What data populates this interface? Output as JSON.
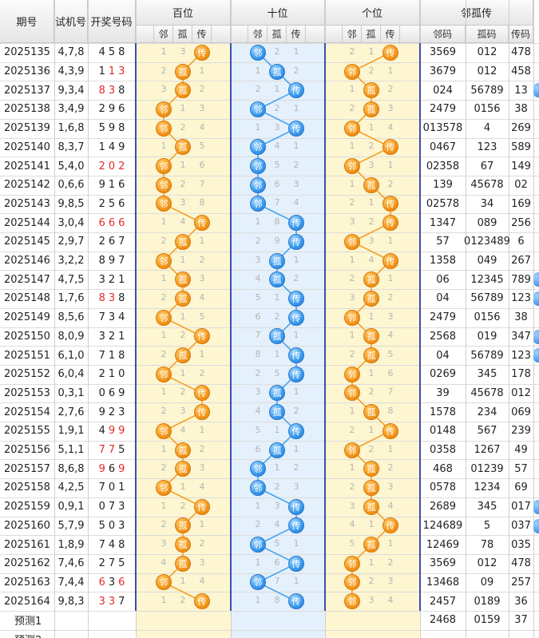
{
  "header": {
    "period": "期号",
    "test_number": "试机号",
    "draw_number": "开奖号码",
    "groups": [
      "百位",
      "十位",
      "个位",
      "邻孤传"
    ],
    "sub_pos": [
      "邻",
      "孤",
      "传"
    ],
    "sub_sum": [
      "邻码",
      "孤码",
      "传码"
    ]
  },
  "rows": [
    {
      "p": "2025135",
      "t": "4,7,8",
      "d": [
        "4",
        "5",
        "8"
      ],
      "r": [
        false,
        false,
        false
      ],
      "h": [
        1,
        3,
        "传"
      ],
      "s": [
        "邻",
        2,
        1
      ],
      "g": [
        2,
        1,
        "传"
      ],
      "n": [
        "3569",
        "012",
        "478"
      ]
    },
    {
      "p": "2025136",
      "t": "4,3,9",
      "d": [
        "1",
        "1",
        "3"
      ],
      "r": [
        false,
        true,
        true
      ],
      "h": [
        2,
        "孤",
        1
      ],
      "s": [
        1,
        "孤",
        2
      ],
      "g": [
        "邻",
        2,
        1
      ],
      "n": [
        "3679",
        "012",
        "458"
      ]
    },
    {
      "p": "2025137",
      "t": "9,3,4",
      "d": [
        "8",
        "3",
        "8"
      ],
      "r": [
        true,
        true,
        false
      ],
      "h": [
        3,
        "孤",
        2
      ],
      "s": [
        2,
        1,
        "传"
      ],
      "g": [
        1,
        "孤",
        2
      ],
      "n": [
        "024",
        "56789",
        "13"
      ]
    },
    {
      "p": "2025138",
      "t": "3,4,9",
      "d": [
        "2",
        "9",
        "6"
      ],
      "r": [
        false,
        false,
        false
      ],
      "h": [
        "邻",
        1,
        3
      ],
      "s": [
        "邻",
        2,
        1
      ],
      "g": [
        2,
        "孤",
        3
      ],
      "n": [
        "2479",
        "0156",
        "38"
      ]
    },
    {
      "p": "2025139",
      "t": "1,6,8",
      "d": [
        "5",
        "9",
        "8"
      ],
      "r": [
        false,
        false,
        false
      ],
      "h": [
        "邻",
        2,
        4
      ],
      "s": [
        1,
        3,
        "传"
      ],
      "g": [
        "邻",
        1,
        4
      ],
      "n": [
        "013578",
        "4",
        "269"
      ]
    },
    {
      "p": "2025140",
      "t": "8,3,7",
      "d": [
        "1",
        "4",
        "9"
      ],
      "r": [
        false,
        false,
        false
      ],
      "h": [
        1,
        "孤",
        5
      ],
      "s": [
        "邻",
        4,
        1
      ],
      "g": [
        1,
        2,
        "传"
      ],
      "n": [
        "0467",
        "123",
        "589"
      ]
    },
    {
      "p": "2025141",
      "t": "5,4,0",
      "d": [
        "2",
        "0",
        "2"
      ],
      "r": [
        true,
        true,
        true
      ],
      "h": [
        "邻",
        1,
        6
      ],
      "s": [
        "邻",
        5,
        2
      ],
      "g": [
        "邻",
        3,
        1
      ],
      "n": [
        "02358",
        "67",
        "149"
      ]
    },
    {
      "p": "2025142",
      "t": "0,6,6",
      "d": [
        "9",
        "1",
        "6"
      ],
      "r": [
        false,
        false,
        false
      ],
      "h": [
        "邻",
        2,
        7
      ],
      "s": [
        "邻",
        6,
        3
      ],
      "g": [
        1,
        "孤",
        2
      ],
      "n": [
        "139",
        "45678",
        "02"
      ]
    },
    {
      "p": "2025143",
      "t": "9,8,5",
      "d": [
        "2",
        "5",
        "6"
      ],
      "r": [
        false,
        false,
        false
      ],
      "h": [
        "邻",
        3,
        8
      ],
      "s": [
        "邻",
        7,
        4
      ],
      "g": [
        2,
        1,
        "传"
      ],
      "n": [
        "02578",
        "34",
        "169"
      ]
    },
    {
      "p": "2025144",
      "t": "3,0,4",
      "d": [
        "6",
        "6",
        "6"
      ],
      "r": [
        true,
        true,
        true
      ],
      "h": [
        1,
        4,
        "传"
      ],
      "s": [
        1,
        8,
        "传"
      ],
      "g": [
        3,
        2,
        "传"
      ],
      "n": [
        "1347",
        "089",
        "256"
      ]
    },
    {
      "p": "2025145",
      "t": "2,9,7",
      "d": [
        "2",
        "6",
        "7"
      ],
      "r": [
        false,
        false,
        false
      ],
      "h": [
        2,
        "孤",
        1
      ],
      "s": [
        2,
        9,
        "传"
      ],
      "g": [
        "邻",
        3,
        1
      ],
      "n": [
        "57",
        "0123489",
        "6"
      ]
    },
    {
      "p": "2025146",
      "t": "3,2,2",
      "d": [
        "8",
        "9",
        "7"
      ],
      "r": [
        false,
        false,
        false
      ],
      "h": [
        "邻",
        1,
        2
      ],
      "s": [
        3,
        "孤",
        1
      ],
      "g": [
        1,
        4,
        "传"
      ],
      "n": [
        "1358",
        "049",
        "267"
      ]
    },
    {
      "p": "2025147",
      "t": "4,7,5",
      "d": [
        "3",
        "2",
        "1"
      ],
      "r": [
        false,
        false,
        false
      ],
      "h": [
        1,
        "孤",
        3
      ],
      "s": [
        4,
        "孤",
        2
      ],
      "g": [
        2,
        "孤",
        1
      ],
      "n": [
        "06",
        "12345",
        "789"
      ]
    },
    {
      "p": "2025148",
      "t": "1,7,6",
      "d": [
        "8",
        "3",
        "8"
      ],
      "r": [
        true,
        true,
        false
      ],
      "h": [
        2,
        "孤",
        4
      ],
      "s": [
        5,
        1,
        "传"
      ],
      "g": [
        3,
        "孤",
        2
      ],
      "n": [
        "04",
        "56789",
        "123"
      ]
    },
    {
      "p": "2025149",
      "t": "8,5,6",
      "d": [
        "7",
        "3",
        "4"
      ],
      "r": [
        false,
        false,
        false
      ],
      "h": [
        "邻",
        1,
        5
      ],
      "s": [
        6,
        2,
        "传"
      ],
      "g": [
        "邻",
        1,
        3
      ],
      "n": [
        "2479",
        "0156",
        "38"
      ]
    },
    {
      "p": "2025150",
      "t": "8,0,9",
      "d": [
        "3",
        "2",
        "1"
      ],
      "r": [
        false,
        false,
        false
      ],
      "h": [
        1,
        2,
        "传"
      ],
      "s": [
        7,
        "孤",
        1
      ],
      "g": [
        1,
        "孤",
        4
      ],
      "n": [
        "2568",
        "019",
        "347"
      ]
    },
    {
      "p": "2025151",
      "t": "6,1,0",
      "d": [
        "7",
        "1",
        "8"
      ],
      "r": [
        false,
        false,
        false
      ],
      "h": [
        2,
        "孤",
        1
      ],
      "s": [
        8,
        1,
        "传"
      ],
      "g": [
        2,
        "孤",
        5
      ],
      "n": [
        "04",
        "56789",
        "123"
      ]
    },
    {
      "p": "2025152",
      "t": "6,0,4",
      "d": [
        "2",
        "1",
        "0"
      ],
      "r": [
        false,
        false,
        false
      ],
      "h": [
        "邻",
        1,
        2
      ],
      "s": [
        2,
        5,
        "传"
      ],
      "g": [
        "邻",
        1,
        6
      ],
      "n": [
        "0269",
        "345",
        "178"
      ]
    },
    {
      "p": "2025153",
      "t": "0,3,1",
      "d": [
        "0",
        "6",
        "9"
      ],
      "r": [
        false,
        false,
        false
      ],
      "h": [
        1,
        2,
        "传"
      ],
      "s": [
        3,
        "孤",
        1
      ],
      "g": [
        "邻",
        2,
        7
      ],
      "n": [
        "39",
        "45678",
        "012"
      ]
    },
    {
      "p": "2025154",
      "t": "2,7,6",
      "d": [
        "9",
        "2",
        "3"
      ],
      "r": [
        false,
        false,
        false
      ],
      "h": [
        2,
        3,
        "传"
      ],
      "s": [
        4,
        "孤",
        2
      ],
      "g": [
        1,
        "孤",
        8
      ],
      "n": [
        "1578",
        "234",
        "069"
      ]
    },
    {
      "p": "2025155",
      "t": "1,9,1",
      "d": [
        "4",
        "9",
        "9"
      ],
      "r": [
        false,
        true,
        true
      ],
      "h": [
        "邻",
        4,
        1
      ],
      "s": [
        5,
        1,
        "传"
      ],
      "g": [
        2,
        1,
        "传"
      ],
      "n": [
        "0148",
        "567",
        "239"
      ]
    },
    {
      "p": "2025156",
      "t": "5,1,1",
      "d": [
        "7",
        "7",
        "5"
      ],
      "r": [
        true,
        true,
        false
      ],
      "h": [
        1,
        "孤",
        2
      ],
      "s": [
        6,
        "孤",
        1
      ],
      "g": [
        "邻",
        2,
        1
      ],
      "n": [
        "0358",
        "1267",
        "49"
      ]
    },
    {
      "p": "2025157",
      "t": "8,6,8",
      "d": [
        "9",
        "6",
        "9"
      ],
      "r": [
        true,
        false,
        true
      ],
      "h": [
        2,
        "孤",
        3
      ],
      "s": [
        "邻",
        1,
        2
      ],
      "g": [
        1,
        "孤",
        2
      ],
      "n": [
        "468",
        "01239",
        "57"
      ]
    },
    {
      "p": "2025158",
      "t": "4,2,5",
      "d": [
        "7",
        "0",
        "1"
      ],
      "r": [
        false,
        false,
        false
      ],
      "h": [
        "邻",
        1,
        4
      ],
      "s": [
        "邻",
        2,
        3
      ],
      "g": [
        2,
        "孤",
        3
      ],
      "n": [
        "0578",
        "1234",
        "69"
      ]
    },
    {
      "p": "2025159",
      "t": "0,9,1",
      "d": [
        "0",
        "7",
        "3"
      ],
      "r": [
        false,
        false,
        false
      ],
      "h": [
        1,
        2,
        "传"
      ],
      "s": [
        1,
        3,
        "传"
      ],
      "g": [
        3,
        "孤",
        4
      ],
      "n": [
        "2689",
        "345",
        "017"
      ]
    },
    {
      "p": "2025160",
      "t": "5,7,9",
      "d": [
        "5",
        "0",
        "3"
      ],
      "r": [
        false,
        false,
        false
      ],
      "h": [
        2,
        "孤",
        1
      ],
      "s": [
        2,
        4,
        "传"
      ],
      "g": [
        4,
        1,
        "传"
      ],
      "n": [
        "124689",
        "5",
        "037"
      ]
    },
    {
      "p": "2025161",
      "t": "1,8,9",
      "d": [
        "7",
        "4",
        "8"
      ],
      "r": [
        false,
        false,
        false
      ],
      "h": [
        3,
        "孤",
        2
      ],
      "s": [
        "邻",
        5,
        1
      ],
      "g": [
        5,
        "孤",
        1
      ],
      "n": [
        "12469",
        "78",
        "035"
      ]
    },
    {
      "p": "2025162",
      "t": "7,4,6",
      "d": [
        "2",
        "7",
        "5"
      ],
      "r": [
        false,
        false,
        false
      ],
      "h": [
        4,
        "孤",
        3
      ],
      "s": [
        1,
        6,
        "传"
      ],
      "g": [
        "邻",
        1,
        2
      ],
      "n": [
        "3569",
        "012",
        "478"
      ]
    },
    {
      "p": "2025163",
      "t": "7,4,4",
      "d": [
        "6",
        "3",
        "6"
      ],
      "r": [
        true,
        false,
        true
      ],
      "h": [
        "邻",
        1,
        4
      ],
      "s": [
        "邻",
        7,
        1
      ],
      "g": [
        "邻",
        2,
        3
      ],
      "n": [
        "13468",
        "09",
        "257"
      ]
    },
    {
      "p": "2025164",
      "t": "9,8,3",
      "d": [
        "3",
        "3",
        "7"
      ],
      "r": [
        true,
        true,
        false
      ],
      "h": [
        1,
        2,
        "传"
      ],
      "s": [
        1,
        8,
        "传"
      ],
      "g": [
        "邻",
        3,
        4
      ],
      "n": [
        "2457",
        "0189",
        "36"
      ]
    }
  ],
  "forecast": [
    {
      "label": "预测1",
      "n": [
        "2468",
        "0159",
        "37"
      ]
    },
    {
      "label": "预测2",
      "n": [
        "",
        "",
        ""
      ]
    }
  ],
  "colors": {
    "pos_hundreds": "#fdf6d0",
    "pos_tens": "#e4f0fb",
    "pos_units": "#fdf6d0",
    "orange_ball": "#f59a1e",
    "blue_ball": "#3f9ff0",
    "red_digit": "#e12c2c",
    "separator": "#3a4fb0"
  },
  "edge_markers_rows": [
    2,
    12,
    13,
    15,
    16,
    24,
    25
  ]
}
